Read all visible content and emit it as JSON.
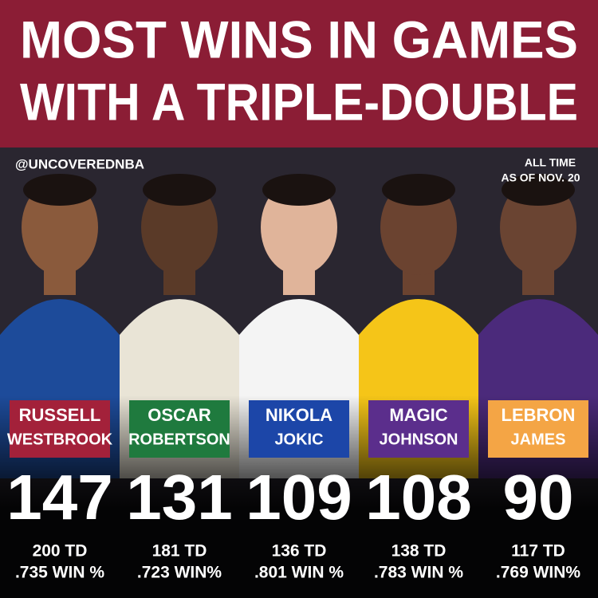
{
  "header": {
    "title": [
      "MOST WINS IN GAMES",
      "WITH A TRIPLE-DOUBLE"
    ]
  },
  "handle": "@UNCOVEREDNBA",
  "note": [
    "ALL TIME",
    "AS OF NOV. 20"
  ],
  "players": [
    {
      "first": "RUSSELL",
      "last": "WESTBROOK",
      "wins": 147,
      "td": "200 TD",
      "win_pct": ".735 WIN %",
      "color": "#a3213a",
      "jersey": "#1d4b9a"
    },
    {
      "first": "OSCAR",
      "last": "ROBERTSON",
      "wins": 131,
      "td": "181 TD",
      "win_pct": ".723 WIN%",
      "color": "#1f7a3e",
      "jersey": "#e9e4d6"
    },
    {
      "first": "NIKOLA",
      "last": "JOKIC",
      "wins": 109,
      "td": "136 TD",
      "win_pct": ".801 WIN %",
      "color": "#1c46a8",
      "jersey": "#f4f4f4"
    },
    {
      "first": "MAGIC",
      "last": "JOHNSON",
      "wins": 108,
      "td": "138 TD",
      "win_pct": ".783 WIN %",
      "color": "#5b2e8c",
      "jersey": "#f5c518"
    },
    {
      "first": "LEBRON",
      "last": "JAMES",
      "wins": 90,
      "td": "117 TD",
      "win_pct": ".769 WIN%",
      "color": "#f4a545",
      "jersey": "#4b2a7b"
    }
  ]
}
